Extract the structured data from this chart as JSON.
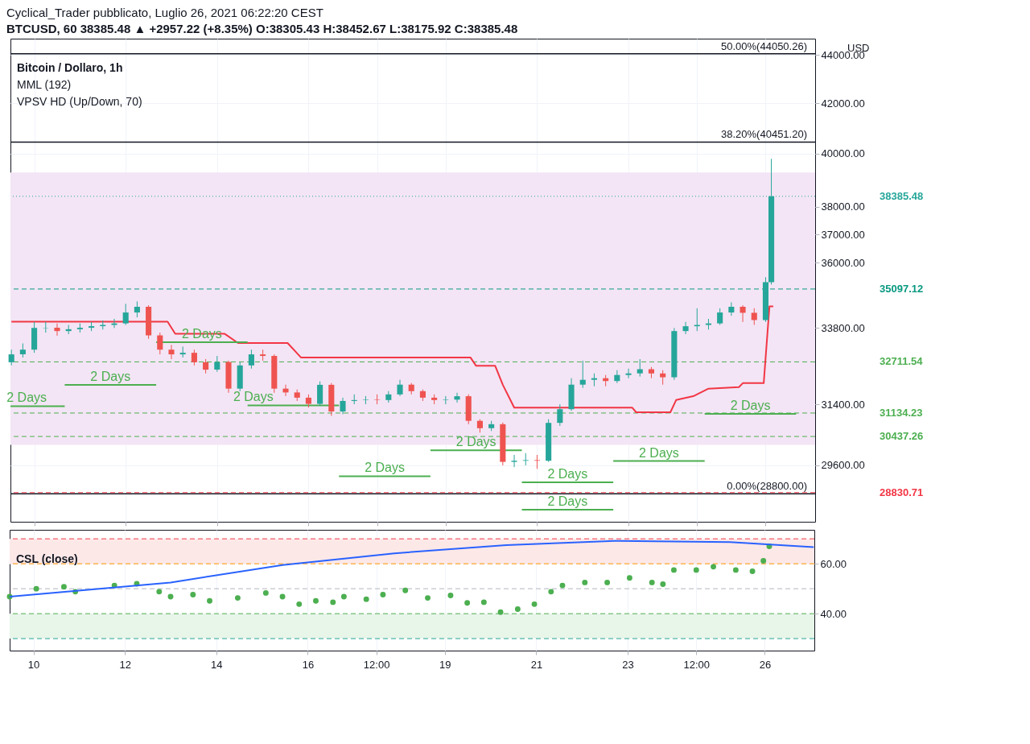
{
  "chart_data": [
    {
      "type": "candlestick",
      "title": "Bitcoin / Dollaro, 1h",
      "ylabel": "USD",
      "annotations": [
        "Cyclical_Trader pubblicato, Luglio 26, 2021 06:22:20 CEST",
        "BTCUSD, 60 38385.48 ▲ +2957.22 (+8.35%) O:38305.43 H:38452.67 L:38175.92 C:38385.48",
        "MML (192)",
        "VPSV HD (Up/Down, 70)",
        {
          "text": "2 Days",
          "x": "2021-07-09T20:00",
          "y": 31342
        },
        {
          "text": "2 Days",
          "x": "2021-07-11T16:00",
          "y": 31995
        },
        {
          "text": "2 Days",
          "x": "2021-07-13T16:00",
          "y": 33340
        },
        {
          "text": "2 Days",
          "x": "2021-07-14T19:00",
          "y": 31365
        },
        {
          "text": "2 Days",
          "x": "2021-07-17T16:00",
          "y": 29291
        },
        {
          "text": "2 Days",
          "x": "2021-07-19T16:00",
          "y": 30033
        },
        {
          "text": "2 Days",
          "x": "2021-07-21T16:00",
          "y": 29120
        },
        {
          "text": "2 Days",
          "x": "2021-07-21T16:00",
          "y": 28359
        },
        {
          "text": "2 Days",
          "x": "2021-07-23T16:00",
          "y": 29725
        },
        {
          "text": "2 Days",
          "x": "2021-07-25T16:00",
          "y": 31112
        }
      ],
      "x": [
        "2021-07-09T12:00",
        "2021-07-09T18:00",
        "2021-07-10T00:00",
        "2021-07-10T06:00",
        "2021-07-10T12:00",
        "2021-07-10T18:00",
        "2021-07-11T00:00",
        "2021-07-11T06:00",
        "2021-07-11T12:00",
        "2021-07-11T18:00",
        "2021-07-12T00:00",
        "2021-07-12T06:00",
        "2021-07-12T12:00",
        "2021-07-12T18:00",
        "2021-07-13T00:00",
        "2021-07-13T06:00",
        "2021-07-13T12:00",
        "2021-07-13T18:00",
        "2021-07-14T00:00",
        "2021-07-14T06:00",
        "2021-07-14T12:00",
        "2021-07-14T18:00",
        "2021-07-15T00:00",
        "2021-07-15T06:00",
        "2021-07-15T12:00",
        "2021-07-15T18:00",
        "2021-07-16T00:00",
        "2021-07-16T06:00",
        "2021-07-16T12:00",
        "2021-07-16T18:00",
        "2021-07-17T00:00",
        "2021-07-17T06:00",
        "2021-07-17T12:00",
        "2021-07-17T18:00",
        "2021-07-18T00:00",
        "2021-07-18T06:00",
        "2021-07-18T12:00",
        "2021-07-18T18:00",
        "2021-07-19T00:00",
        "2021-07-19T06:00",
        "2021-07-19T12:00",
        "2021-07-19T18:00",
        "2021-07-20T00:00",
        "2021-07-20T06:00",
        "2021-07-20T12:00",
        "2021-07-20T18:00",
        "2021-07-21T00:00",
        "2021-07-21T06:00",
        "2021-07-21T12:00",
        "2021-07-21T18:00",
        "2021-07-22T00:00",
        "2021-07-22T06:00",
        "2021-07-22T12:00",
        "2021-07-22T18:00",
        "2021-07-23T00:00",
        "2021-07-23T06:00",
        "2021-07-23T12:00",
        "2021-07-23T18:00",
        "2021-07-24T00:00",
        "2021-07-24T06:00",
        "2021-07-24T12:00",
        "2021-07-24T18:00",
        "2021-07-25T00:00",
        "2021-07-25T06:00",
        "2021-07-25T12:00",
        "2021-07-25T18:00",
        "2021-07-26T00:00",
        "2021-07-26T03:00"
      ],
      "ohlc": [
        [
          32700,
          33100,
          32600,
          32950
        ],
        [
          32950,
          33300,
          32850,
          33100
        ],
        [
          33100,
          34000,
          33000,
          33800
        ],
        [
          33800,
          34000,
          33650,
          33810
        ],
        [
          33810,
          33950,
          33550,
          33700
        ],
        [
          33700,
          33900,
          33600,
          33760
        ],
        [
          33760,
          33950,
          33650,
          33808
        ],
        [
          33808,
          34000,
          33700,
          33860
        ],
        [
          33860,
          34050,
          33750,
          33900
        ],
        [
          33900,
          34100,
          33800,
          33950
        ],
        [
          33950,
          34600,
          33900,
          34310
        ],
        [
          34310,
          34680,
          34150,
          34500
        ],
        [
          34500,
          34550,
          33450,
          33560
        ],
        [
          33560,
          33650,
          32950,
          33100
        ],
        [
          33100,
          33250,
          32800,
          32950
        ],
        [
          32950,
          33200,
          32850,
          33000
        ],
        [
          33000,
          33100,
          32600,
          32700
        ],
        [
          32700,
          32800,
          32350,
          32466
        ],
        [
          32466,
          32900,
          32400,
          32706
        ],
        [
          32706,
          32750,
          31750,
          31877
        ],
        [
          31877,
          32700,
          31800,
          32600
        ],
        [
          32600,
          33100,
          32500,
          32950
        ],
        [
          32950,
          33100,
          32750,
          32900
        ],
        [
          32900,
          32950,
          31750,
          31877
        ],
        [
          31877,
          32000,
          31650,
          31760
        ],
        [
          31760,
          31850,
          31500,
          31600
        ],
        [
          31600,
          31700,
          31300,
          31411
        ],
        [
          31411,
          32100,
          31350,
          31995
        ],
        [
          31995,
          32050,
          31050,
          31181
        ],
        [
          31181,
          31600,
          31100,
          31500
        ],
        [
          31500,
          31700,
          31400,
          31527
        ],
        [
          31527,
          31650,
          31400,
          31540
        ],
        [
          31540,
          31700,
          31400,
          31527
        ],
        [
          31527,
          31800,
          31450,
          31700
        ],
        [
          31700,
          32150,
          31650,
          32000
        ],
        [
          32000,
          32050,
          31700,
          31800
        ],
        [
          31800,
          31850,
          31500,
          31600
        ],
        [
          31600,
          31700,
          31400,
          31527
        ],
        [
          31527,
          31650,
          31400,
          31540
        ],
        [
          31540,
          31750,
          31450,
          31644
        ],
        [
          31644,
          31700,
          30800,
          30900
        ],
        [
          30900,
          30950,
          30550,
          30682
        ],
        [
          30682,
          30900,
          30600,
          30800
        ],
        [
          30800,
          30850,
          29600,
          29700
        ],
        [
          29700,
          29900,
          29550,
          29732
        ],
        [
          29732,
          29950,
          29600,
          29750
        ],
        [
          29750,
          29900,
          29500,
          29732
        ],
        [
          29732,
          30950,
          29700,
          30840
        ],
        [
          30840,
          31400,
          30750,
          31250
        ],
        [
          31250,
          32200,
          31200,
          32000
        ],
        [
          32000,
          32750,
          31900,
          32150
        ],
        [
          32150,
          32350,
          31950,
          32200
        ],
        [
          32200,
          32300,
          31950,
          32112
        ],
        [
          32112,
          32450,
          32050,
          32300
        ],
        [
          32300,
          32500,
          32200,
          32350
        ],
        [
          32350,
          32800,
          32250,
          32480
        ],
        [
          32480,
          32550,
          32200,
          32348
        ],
        [
          32348,
          32450,
          32000,
          32229
        ],
        [
          32229,
          33800,
          32150,
          33700
        ],
        [
          33700,
          34000,
          33600,
          33858
        ],
        [
          33858,
          34450,
          33700,
          33900
        ],
        [
          33900,
          34100,
          33750,
          33950
        ],
        [
          33950,
          34450,
          33900,
          34310
        ],
        [
          34310,
          34650,
          34200,
          34500
        ],
        [
          34500,
          34550,
          34000,
          34300
        ],
        [
          34300,
          34450,
          33900,
          34060
        ],
        [
          34060,
          35500,
          34000,
          35330
        ],
        [
          35330,
          39800,
          35250,
          38385.48
        ]
      ],
      "colors": [
        "#26a69a",
        "#26a69a",
        "#26a69a",
        "#26a69a",
        "#ef5350",
        "#26a69a",
        "#26a69a",
        "#26a69a",
        "#26a69a",
        "#26a69a",
        "#26a69a",
        "#26a69a",
        "#ef5350",
        "#ef5350",
        "#ef5350",
        "#26a69a",
        "#ef5350",
        "#ef5350",
        "#26a69a",
        "#ef5350",
        "#26a69a",
        "#26a69a",
        "#ef5350",
        "#ef5350",
        "#ef5350",
        "#ef5350",
        "#ef5350",
        "#26a69a",
        "#ef5350",
        "#26a69a",
        "#26a69a",
        "#26a69a",
        "#ef5350",
        "#26a69a",
        "#26a69a",
        "#ef5350",
        "#ef5350",
        "#ef5350",
        "#26a69a",
        "#26a69a",
        "#ef5350",
        "#ef5350",
        "#26a69a",
        "#ef5350",
        "#26a69a",
        "#26a69a",
        "#ef5350",
        "#26a69a",
        "#26a69a",
        "#26a69a",
        "#26a69a",
        "#26a69a",
        "#ef5350",
        "#26a69a",
        "#26a69a",
        "#26a69a",
        "#ef5350",
        "#ef5350",
        "#26a69a",
        "#26a69a",
        "#26a69a",
        "#26a69a",
        "#26a69a",
        "#26a69a",
        "#ef5350",
        "#ef5350",
        "#26a69a",
        "#26a69a"
      ],
      "series": [
        {
          "type": "line",
          "color": "#f23645",
          "x": [
            "2021-07-09T12:00",
            "2021-07-12T22:00",
            "2021-07-13T02:00",
            "2021-07-14T04:00",
            "2021-07-14T11:00",
            "2021-07-15T13:00",
            "2021-07-15T20:00",
            "2021-07-19T13:00",
            "2021-07-19T16:00",
            "2021-07-20T02:00",
            "2021-07-20T06:00",
            "2021-07-20T12:00",
            "2021-07-23T02:00",
            "2021-07-23T04:00",
            "2021-07-23T22:00",
            "2021-07-24T01:00",
            "2021-07-24T10:00",
            "2021-07-24T18:00",
            "2021-07-25T10:00",
            "2021-07-25T12:00",
            "2021-07-25T23:00",
            "2021-07-26T02:00",
            "2021-07-26T04:00"
          ],
          "values": [
            34006,
            34006,
            33611,
            33611,
            33313,
            33313,
            32853,
            32853,
            32587,
            32587,
            31995,
            31296,
            31296,
            31158,
            31158,
            31527,
            31644,
            31877,
            31925,
            32046,
            32046,
            34510,
            34510
          ]
        },
        {
          "type": "line",
          "color": "#4caf50",
          "x": [
            "2021-07-09T11:30",
            "2021-07-10T16:00",
            null,
            "2021-07-10T16:00",
            "2021-07-12T16:00",
            null,
            "2021-07-12T16:00",
            "2021-07-14T16:00",
            null,
            "2021-07-14T16:00",
            "2021-07-16T16:00",
            null,
            "2021-07-16T16:00",
            "2021-07-18T16:00",
            null,
            "2021-07-18T16:00",
            "2021-07-20T16:00",
            null,
            "2021-07-20T16:00",
            "2021-07-22T16:00",
            null,
            "2021-07-22T16:00",
            "2021-07-24T16:00",
            null,
            "2021-07-24T16:00",
            "2021-07-26T16:00"
          ],
          "values": [
            31342,
            31342,
            null,
            31995,
            31995,
            null,
            33340,
            33340,
            null,
            31365,
            31365,
            null,
            29291,
            29291,
            null,
            30033,
            30033,
            null,
            29120,
            29120,
            null,
            29725,
            29725,
            null,
            31112,
            31112
          ]
        },
        {
          "type": "line",
          "color": "#4caf50",
          "x": [
            "2021-07-20T16:00",
            "2021-07-22T16:00"
          ],
          "values": [
            28359,
            28359
          ]
        }
      ],
      "bands": [
        {
          "axis": "y",
          "from": 30190,
          "to": 39280,
          "label": null,
          "color": "#f3e5f5"
        }
      ],
      "ref_lines": [
        {
          "axis": "y",
          "value": 44050.26,
          "label": "50.00%(44050.26)",
          "color": "#131722",
          "line_style": "solid"
        },
        {
          "axis": "y",
          "value": 40451.2,
          "label": "38.20%(40451.20)",
          "color": "#131722",
          "line_style": "solid"
        },
        {
          "axis": "y",
          "value": 28800,
          "label": "0.00%(28800.00)",
          "color": "#131722",
          "line_style": "solid"
        },
        {
          "axis": "y",
          "value": 38385.48,
          "label": "38385.48",
          "color": "#26a69a",
          "line_style": "dotted"
        },
        {
          "axis": "y",
          "value": 35097.12,
          "label": "35097.12",
          "color": "#089981",
          "line_style": "dashed"
        },
        {
          "axis": "y",
          "value": 32711.54,
          "label": "32711.54",
          "color": "#4caf50",
          "line_style": "dashed"
        },
        {
          "axis": "y",
          "value": 31134.23,
          "label": "31134.23",
          "color": "#4caf50",
          "line_style": "dashed"
        },
        {
          "axis": "y",
          "value": 30437.26,
          "label": "30437.26",
          "color": "#4caf50",
          "line_style": "dashed"
        },
        {
          "axis": "y",
          "value": 28830.71,
          "label": "28830.71",
          "color": "#f23645",
          "line_style": "dashed"
        }
      ],
      "xlim": [
        "2021-07-09T11:30",
        "2021-07-27T02:00"
      ],
      "xticks": [
        {
          "value": "2021-07-10",
          "label": null
        },
        {
          "value": "2021-07-12",
          "label": null
        },
        {
          "value": "2021-07-14",
          "label": null
        },
        {
          "value": "2021-07-16",
          "label": null
        },
        {
          "value": "2021-07-17T12:00",
          "label": null
        },
        {
          "value": "2021-07-19",
          "label": null
        },
        {
          "value": "2021-07-21",
          "label": null
        },
        {
          "value": "2021-07-23",
          "label": null
        },
        {
          "value": "2021-07-24T12:00",
          "label": null
        },
        {
          "value": "2021-07-26",
          "label": null
        }
      ],
      "ylim": [
        28030,
        44700
      ],
      "yticks": [
        {
          "value": 29600,
          "label": "29600.00"
        },
        {
          "value": 31400,
          "label": "31400.00"
        },
        {
          "value": 33800,
          "label": "33800.00"
        },
        {
          "value": 36000,
          "label": "36000.00"
        },
        {
          "value": 37000,
          "label": "37000.00"
        },
        {
          "value": 38000,
          "label": "38000.00"
        },
        {
          "value": 40000,
          "label": "40000.00"
        },
        {
          "value": 42000,
          "label": "42000.00"
        },
        {
          "value": 44000,
          "label": "44000.00"
        }
      ],
      "log": true,
      "grid": true,
      "tick_labels": "y"
    },
    {
      "type": "scatter",
      "title": "CSL (close)",
      "series": [
        {
          "type": "scatter",
          "marker": "circle",
          "color": "#4caf50",
          "x": [
            "2021-07-09T11:30",
            "2021-07-10T01:30",
            "2021-07-10T16:00",
            "2021-07-10T22:00",
            "2021-07-11T18:30",
            "2021-07-12T06:15",
            "2021-07-12T18:00",
            "2021-07-13T00:00",
            "2021-07-13T11:45",
            "2021-07-13T20:30",
            "2021-07-14T11:15",
            "2021-07-15T02:00",
            "2021-07-15T10:45",
            "2021-07-15T19:30",
            "2021-07-16T04:15",
            "2021-07-16T13:15",
            "2021-07-16T19:00",
            "2021-07-17T06:45",
            "2021-07-17T15:30",
            "2021-07-18T03:15",
            "2021-07-18T15:00",
            "2021-07-19T03:00",
            "2021-07-19T11:45",
            "2021-07-19T20:30",
            "2021-07-20T05:15",
            "2021-07-20T14:15",
            "2021-07-20T23:00",
            "2021-07-21T07:45",
            "2021-07-21T13:45",
            "2021-07-22T01:30",
            "2021-07-22T13:15",
            "2021-07-23T01:00",
            "2021-07-23T12:45",
            "2021-07-23T18:30",
            "2021-07-24T00:15",
            "2021-07-24T12:00",
            "2021-07-24T21:00",
            "2021-07-25T08:45",
            "2021-07-25T17:30",
            "2021-07-25T23:15",
            "2021-07-26T02:20"
          ],
          "values": [
            46.8,
            50.0,
            50.8,
            48.8,
            51.3,
            52.0,
            48.8,
            46.8,
            47.6,
            45.1,
            46.3,
            48.3,
            46.8,
            43.8,
            45.1,
            44.6,
            46.8,
            45.8,
            47.6,
            49.3,
            46.3,
            47.3,
            44.3,
            44.6,
            40.6,
            41.8,
            43.8,
            48.8,
            51.3,
            52.5,
            52.5,
            54.3,
            52.5,
            51.8,
            57.5,
            57.5,
            58.8,
            57.5,
            57.0,
            61.2,
            67.0
          ]
        },
        {
          "type": "line",
          "marker": "none",
          "color": "#2962ff",
          "x": [
            "2021-07-09T11:30",
            "2021-07-13T00:00",
            "2021-07-15T10:45",
            "2021-07-17T21:30",
            "2021-07-20T08:15",
            "2021-07-22T19:00",
            "2021-07-25T05:45",
            "2021-07-27T01:40"
          ],
          "values": [
            46.8,
            52.5,
            59.5,
            64.2,
            67.5,
            69.2,
            68.7,
            66.7
          ]
        }
      ],
      "bands": [
        {
          "axis": "y",
          "from": 60,
          "to": 70,
          "label": null,
          "color": "#fde8e8"
        },
        {
          "axis": "y",
          "from": 30,
          "to": 40,
          "label": null,
          "color": "#e8f5e9"
        }
      ],
      "ref_lines": [
        {
          "axis": "y",
          "value": 70,
          "label": null,
          "color": "#f23645",
          "line_style": "dashed"
        },
        {
          "axis": "y",
          "value": 60,
          "label": null,
          "color": "#ff9800",
          "line_style": "dashed"
        },
        {
          "axis": "y",
          "value": 50,
          "label": null,
          "color": "#b2b5be",
          "line_style": "dashed"
        },
        {
          "axis": "y",
          "value": 40,
          "label": null,
          "color": "#4caf50",
          "line_style": "dashed"
        },
        {
          "axis": "y",
          "value": 30,
          "label": null,
          "color": "#26a69a",
          "line_style": "dashed"
        }
      ],
      "xlim": [
        "2021-07-09T11:30",
        "2021-07-27T02:00"
      ],
      "xticks": [
        {
          "value": "2021-07-10",
          "label": "10"
        },
        {
          "value": "2021-07-12",
          "label": "12"
        },
        {
          "value": "2021-07-14",
          "label": "14"
        },
        {
          "value": "2021-07-16",
          "label": "16"
        },
        {
          "value": "2021-07-17T12:00",
          "label": "12:00"
        },
        {
          "value": "2021-07-19",
          "label": "19"
        },
        {
          "value": "2021-07-21",
          "label": "21"
        },
        {
          "value": "2021-07-23",
          "label": "23"
        },
        {
          "value": "2021-07-24T12:00",
          "label": "12:00"
        },
        {
          "value": "2021-07-26",
          "label": "26"
        }
      ],
      "ylim": [
        25.2,
        73.6
      ],
      "yticks": [
        {
          "value": 40,
          "label": "40.00"
        },
        {
          "value": 60,
          "label": "60.00"
        }
      ],
      "grid": true
    }
  ]
}
